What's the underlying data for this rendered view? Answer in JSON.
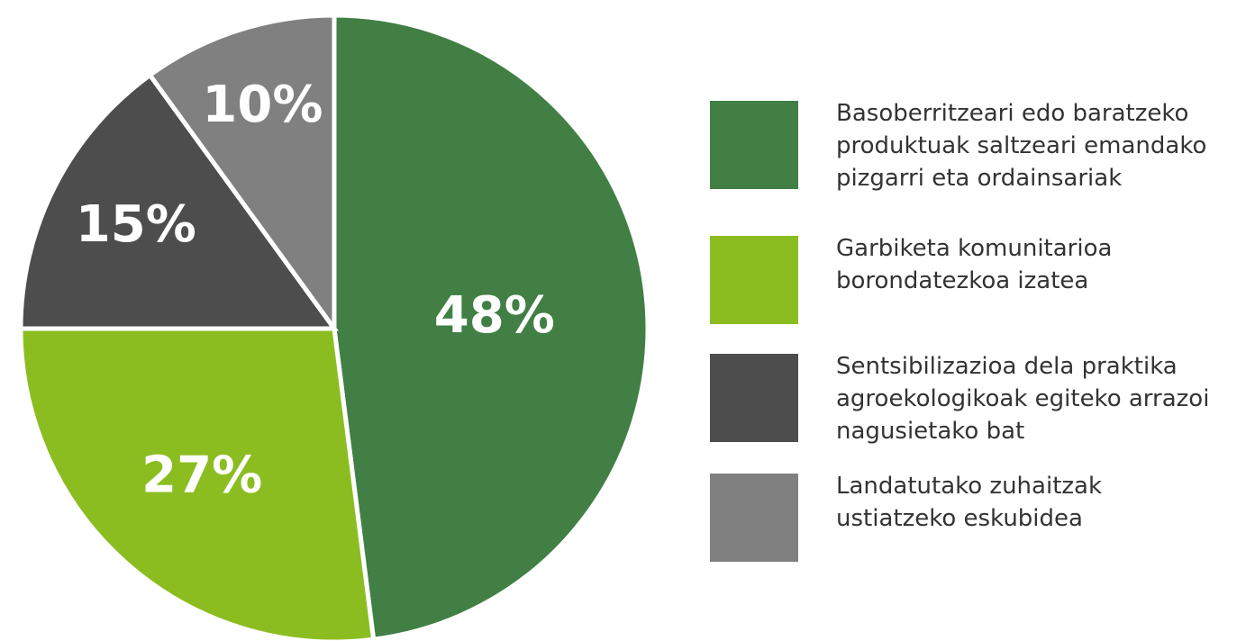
{
  "chart_data": {
    "type": "pie",
    "categories": [
      "Basoberritzeari edo baratzeko\nproduktuak saltzeari emandako\npizgarri eta ordainsariak",
      "Garbiketa komunitarioa\nborondatezkoa izatea",
      "Sentsibilizazioa dela praktika\nagroekologikoak egiteko arrazoi\nnagusietako bat",
      "Landatutako zuhaitzak\nustiatzeko eskubidea"
    ],
    "values": [
      48,
      27,
      15,
      10
    ],
    "value_labels": [
      "48%",
      "27%",
      "15%",
      "10%"
    ],
    "colors": [
      "#417f45",
      "#8bbd21",
      "#4d4d4d",
      "#808080"
    ],
    "legend": "right"
  }
}
